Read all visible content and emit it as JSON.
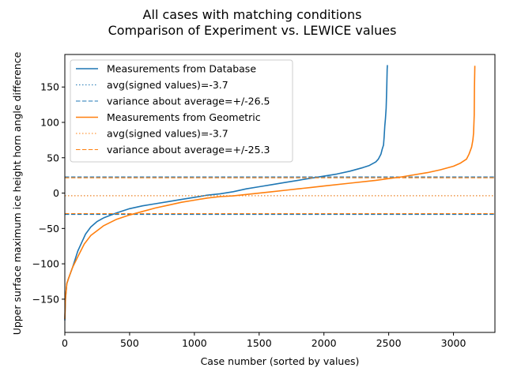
{
  "chart_data": {
    "type": "line",
    "title": "All cases with matching conditions",
    "subtitle": "Comparison of Experiment vs. LEWICE values",
    "xlabel": "Case number (sorted by values)",
    "ylabel": "Upper surface maximum ice height horn angle difference",
    "xlim": [
      0,
      3320
    ],
    "ylim": [
      -197,
      196
    ],
    "xticks": [
      "0",
      "500",
      "1000",
      "1500",
      "2000",
      "2500",
      "3000"
    ],
    "yticks": [
      "−150",
      "−100",
      "−50",
      "0",
      "50",
      "100",
      "150"
    ],
    "xtick_values": [
      0,
      500,
      1000,
      1500,
      2000,
      2500,
      3000
    ],
    "ytick_values": [
      -150,
      -100,
      -50,
      0,
      50,
      100,
      150
    ],
    "grid": false,
    "legend_position": "top-left",
    "series": [
      {
        "name": "Measurements from Database",
        "color": "#1f77b4",
        "style": "solid",
        "x": [
          0,
          5,
          15,
          30,
          60,
          100,
          130,
          160,
          200,
          250,
          300,
          400,
          500,
          600,
          700,
          800,
          900,
          1000,
          1100,
          1200,
          1300,
          1400,
          1500,
          1600,
          1700,
          1800,
          1900,
          2000,
          2100,
          2200,
          2300,
          2350,
          2400,
          2420,
          2440,
          2450,
          2460,
          2465,
          2470,
          2475,
          2480,
          2485,
          2488,
          2490
        ],
        "y": [
          -180,
          -150,
          -128,
          -120,
          -105,
          -82,
          -70,
          -58,
          -48,
          -40,
          -35,
          -28,
          -22,
          -18,
          -15,
          -12,
          -9,
          -6,
          -3,
          -1,
          2,
          6,
          9,
          12,
          15,
          18,
          21,
          24,
          27,
          31,
          36,
          39,
          44,
          48,
          55,
          62,
          68,
          80,
          95,
          105,
          120,
          150,
          175,
          181
        ]
      },
      {
        "name": "avg(signed values)=-3.7",
        "color": "#1f77b4",
        "style": "dotted",
        "x": [
          0,
          3320
        ],
        "y": [
          -3.7,
          -3.7
        ]
      },
      {
        "name": "variance about average=+/-26.5",
        "color": "#1f77b4",
        "style": "dashed",
        "x": [
          0,
          3320,
          0,
          3320
        ],
        "y": [
          22.8,
          22.8,
          -30.2,
          -30.2
        ]
      },
      {
        "name": "Measurements from Geometric",
        "color": "#ff7f0e",
        "style": "solid",
        "x": [
          0,
          5,
          15,
          30,
          60,
          100,
          150,
          200,
          300,
          400,
          500,
          600,
          700,
          800,
          900,
          1000,
          1100,
          1200,
          1300,
          1400,
          1500,
          1600,
          1700,
          1800,
          1900,
          2000,
          2200,
          2400,
          2600,
          2800,
          2900,
          3000,
          3050,
          3100,
          3120,
          3140,
          3150,
          3155,
          3160,
          3162,
          3165
        ],
        "y": [
          -178,
          -150,
          -128,
          -120,
          -105,
          -90,
          -72,
          -60,
          -46,
          -37,
          -31,
          -26,
          -21,
          -17,
          -13,
          -10,
          -7,
          -5,
          -4,
          -2,
          0,
          2,
          4,
          6,
          8,
          10,
          14,
          18,
          23,
          29,
          33,
          38,
          42,
          48,
          55,
          65,
          75,
          85,
          110,
          150,
          180
        ]
      },
      {
        "name": "avg(signed values)=-3.7",
        "color": "#ff7f0e",
        "style": "dotted",
        "x": [
          0,
          3320
        ],
        "y": [
          -3.7,
          -3.7
        ]
      },
      {
        "name": "variance about average=+/-25.3",
        "color": "#ff7f0e",
        "style": "dashed",
        "x": [
          0,
          3320,
          0,
          3320
        ],
        "y": [
          21.6,
          21.6,
          -29.0,
          -29.0
        ]
      }
    ]
  }
}
